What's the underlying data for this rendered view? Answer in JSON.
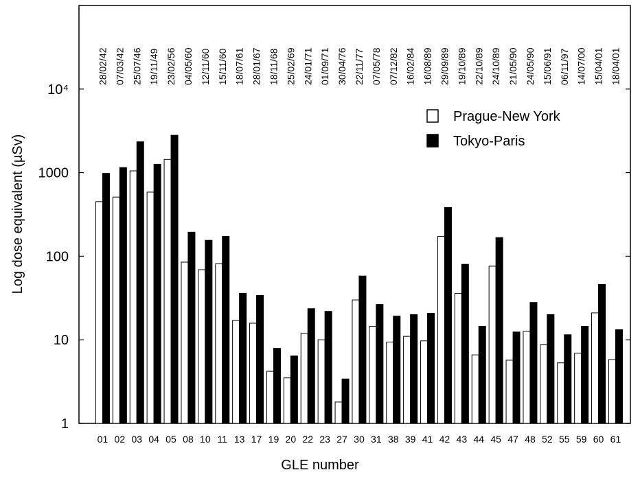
{
  "chart_data": {
    "type": "bar",
    "x_label": "GLE number",
    "y_label": "Log dose equivalent (µSv)",
    "categories": [
      "01",
      "02",
      "03",
      "04",
      "05",
      "08",
      "10",
      "11",
      "13",
      "17",
      "19",
      "20",
      "22",
      "23",
      "27",
      "30",
      "31",
      "38",
      "39",
      "41",
      "42",
      "43",
      "44",
      "45",
      "47",
      "48",
      "52",
      "55",
      "59",
      "60",
      "61"
    ],
    "dates": [
      "28/02/42",
      "07/03/42",
      "25/07/46",
      "19/11/49",
      "23/02/56",
      "04/05/60",
      "12/11/60",
      "15/11/60",
      "18/07/61",
      "28/01/67",
      "18/11/68",
      "25/02/69",
      "24/01/71",
      "01/09/71",
      "30/04/76",
      "22/11/77",
      "07/05/78",
      "07/12/82",
      "16/02/84",
      "16/08/89",
      "29/09/89",
      "19/10/89",
      "22/10/89",
      "24/10/89",
      "21/05/90",
      "24/05/90",
      "15/06/91",
      "06/11/97",
      "14/07/00",
      "15/04/01",
      "18/04/01"
    ],
    "series": [
      {
        "name": "Prague-New York",
        "color": "#ffffff",
        "values": [
          450,
          510,
          1050,
          585,
          1440,
          85,
          69,
          81,
          17,
          15.8,
          4.2,
          3.5,
          12,
          10,
          1.8,
          30,
          14.5,
          9.4,
          11,
          9.7,
          173,
          36,
          6.6,
          76,
          5.7,
          12.6,
          8.7,
          5.3,
          6.9,
          21,
          5.8
        ]
      },
      {
        "name": "Tokyo-Paris",
        "color": "#000000",
        "values": [
          980,
          1150,
          2340,
          1260,
          2800,
          194,
          155,
          173,
          36,
          34,
          7.9,
          6.4,
          23.6,
          21.9,
          3.4,
          58,
          26.5,
          19.2,
          20,
          20.8,
          383,
          80,
          14.5,
          167,
          12.4,
          28,
          20,
          11.5,
          14.5,
          46,
          13.2
        ]
      }
    ],
    "log_scale": true,
    "ylim": [
      1,
      100000
    ],
    "yticks": [
      1,
      10,
      100,
      1000,
      {
        "value": 10000,
        "label": "10⁴"
      }
    ],
    "legend": "upper right"
  }
}
